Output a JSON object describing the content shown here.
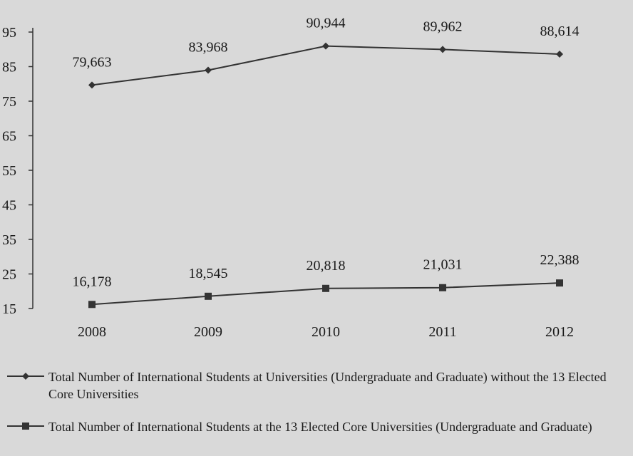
{
  "chart_data": {
    "type": "line",
    "categories": [
      "2008",
      "2009",
      "2010",
      "2011",
      "2012"
    ],
    "ylim": [
      15,
      95
    ],
    "yticks": [
      15,
      25,
      35,
      45,
      55,
      65,
      75,
      85,
      95
    ],
    "grid": false,
    "legend_position": "bottom",
    "series": [
      {
        "name": "Total Number of International Students at Universities (Undergraduate and Graduate) without the 13 Elected Core Universities",
        "values": [
          79.663,
          83.968,
          90.944,
          89.962,
          88.614
        ],
        "labels": [
          "79,663",
          "83,968",
          "90,944",
          "89,962",
          "88,614"
        ],
        "marker": "diamond",
        "color": "#333333"
      },
      {
        "name": "Total Number of International Students at the 13 Elected Core Universities (Undergraduate and Graduate)",
        "values": [
          16.178,
          18.545,
          20.818,
          21.031,
          22.388
        ],
        "labels": [
          "16,178",
          "18,545",
          "20,818",
          "21,031",
          "22,388"
        ],
        "marker": "square",
        "color": "#333333"
      }
    ]
  }
}
